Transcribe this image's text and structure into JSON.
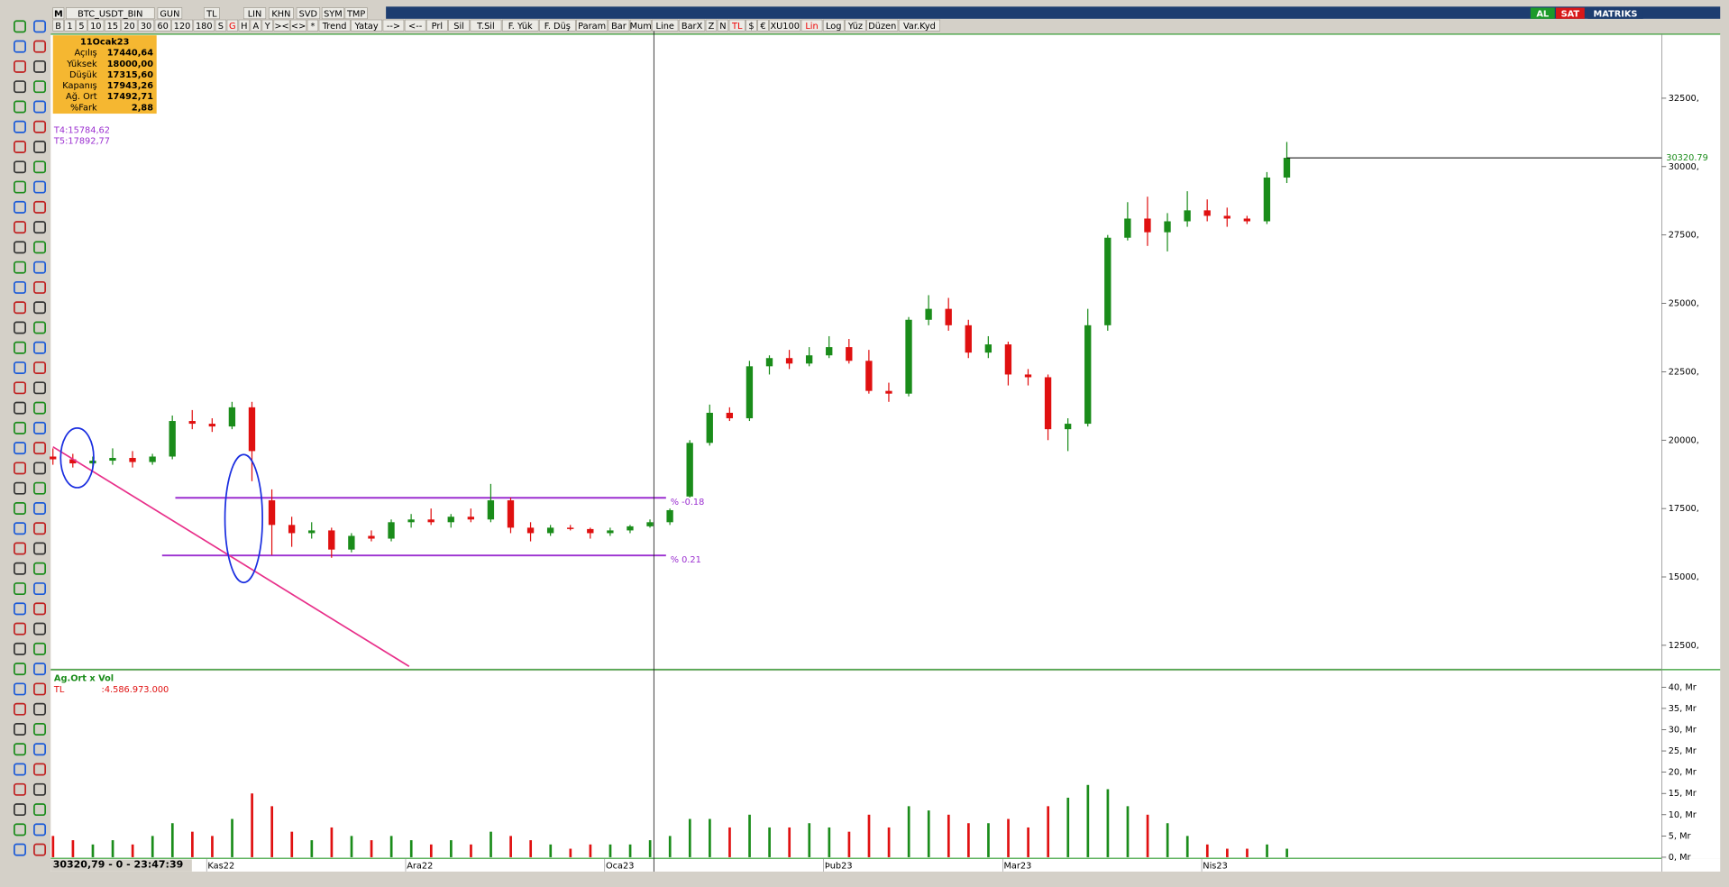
{
  "toolbar": {
    "row1": [
      "M",
      "BTC_USDT_BIN",
      "GUN",
      "TL",
      "LIN",
      "KHN",
      "SVD",
      "SYM",
      "TMP"
    ],
    "row2": [
      "B",
      "1",
      "5",
      "10",
      "15",
      "20",
      "30",
      "60",
      "120",
      "180",
      "S",
      "G",
      "H",
      "A",
      "Y",
      "><",
      "<>",
      "*",
      "Trend",
      "Yatay",
      "-->",
      "<--",
      "Prl",
      "Sil",
      "T.Sil",
      "F. Yük",
      "F. Düş",
      "Param",
      "Bar",
      "Mum",
      "Line",
      "BarX",
      "Z",
      "N",
      "TL",
      "$",
      "€",
      "XU100",
      "Lin",
      "Log",
      "Yüz",
      "Düzen",
      "Var.Kyd"
    ],
    "right": [
      "AL",
      "SAT",
      "MATRIKS"
    ]
  },
  "info": {
    "date": "11Ocak23",
    "rows": [
      [
        "Açılış",
        "17440,64"
      ],
      [
        "Yüksek",
        "18000,00"
      ],
      [
        "Düşük",
        "17315,60"
      ],
      [
        "Kapanış",
        "17943,26"
      ],
      [
        "Ağ. Ort",
        "17492,71"
      ],
      [
        "%Fark",
        "2,88"
      ]
    ]
  },
  "status": "30320,79 - 0 - 23:47:39",
  "chart_data": [
    {
      "type": "candlestick",
      "categories": [
        null,
        null,
        null,
        null,
        null,
        null,
        null,
        null,
        "Kas22",
        null,
        null,
        null,
        null,
        null,
        null,
        null,
        null,
        null,
        "Ara22",
        null,
        null,
        null,
        null,
        null,
        null,
        null,
        null,
        null,
        "Oca23",
        null,
        null,
        null,
        null,
        null,
        null,
        null,
        null,
        null,
        null,
        "Þub23",
        null,
        null,
        null,
        null,
        null,
        null,
        null,
        null,
        "Mar23",
        null,
        null,
        null,
        null,
        null,
        null,
        null,
        null,
        null,
        "Nis23",
        null,
        null,
        null,
        null
      ],
      "open": [
        19400,
        19300,
        19150,
        19250,
        19350,
        19200,
        19400,
        20700,
        20600,
        20500,
        21200,
        17800,
        16900,
        16600,
        16700,
        16000,
        16500,
        16400,
        17000,
        17100,
        17000,
        17200,
        17100,
        17800,
        16800,
        16600,
        16800,
        16750,
        16600,
        16700,
        16850,
        17000,
        17940,
        19900,
        21000,
        20800,
        22700,
        23000,
        22800,
        23100,
        23400,
        22900,
        21800,
        21700,
        24400,
        24800,
        24200,
        23200,
        23500,
        22400,
        22300,
        20400,
        20600,
        24200,
        27400,
        28100,
        27600,
        28000,
        28400,
        28200,
        28100,
        28000,
        29600
      ],
      "high": [
        19700,
        19500,
        19400,
        19700,
        19600,
        19500,
        20900,
        21100,
        20800,
        21400,
        21400,
        18200,
        17200,
        17000,
        16800,
        16600,
        16700,
        17100,
        17300,
        17500,
        17300,
        17500,
        18400,
        17900,
        17000,
        16900,
        16900,
        16800,
        16800,
        16900,
        17100,
        17500,
        20000,
        21300,
        21200,
        22900,
        23100,
        23300,
        23400,
        23800,
        23700,
        23300,
        22100,
        24500,
        25300,
        25200,
        24400,
        23800,
        23600,
        22600,
        22400,
        20800,
        24800,
        27500,
        28700,
        28900,
        28300,
        29100,
        28800,
        28500,
        28200,
        29800,
        30900
      ],
      "low": [
        19100,
        19000,
        19000,
        19100,
        19000,
        19100,
        19300,
        20400,
        20300,
        20400,
        18500,
        15800,
        16100,
        16400,
        15700,
        15900,
        16300,
        16300,
        16800,
        16900,
        16800,
        17000,
        17000,
        16600,
        16300,
        16500,
        16700,
        16400,
        16500,
        16600,
        16800,
        16900,
        17900,
        19800,
        20700,
        20700,
        22400,
        22600,
        22700,
        23000,
        22800,
        21700,
        21400,
        21600,
        24200,
        24000,
        23000,
        23000,
        22000,
        22000,
        20000,
        19600,
        20500,
        24000,
        27300,
        27100,
        26900,
        27800,
        28000,
        27800,
        27900,
        27900,
        29400
      ],
      "close": [
        19300,
        19150,
        19250,
        19350,
        19200,
        19400,
        20700,
        20600,
        20500,
        21200,
        19600,
        16900,
        16600,
        16700,
        16000,
        16500,
        16400,
        17000,
        17100,
        17000,
        17200,
        17100,
        17800,
        16800,
        16600,
        16800,
        16750,
        16600,
        16700,
        16850,
        17000,
        17440,
        19900,
        21000,
        20800,
        22700,
        23000,
        22800,
        23100,
        23400,
        22900,
        21800,
        21700,
        24400,
        24800,
        24200,
        23200,
        23500,
        22400,
        22300,
        20400,
        20600,
        24200,
        27400,
        28100,
        27600,
        28000,
        28400,
        28200,
        28100,
        28000,
        29600,
        30320.79
      ],
      "up_color": "#1a8c1a",
      "down_color": "#e01010",
      "ylim": [
        11650,
        34840
      ],
      "yticks": [
        {
          "value": 12500,
          "label": "12500,"
        },
        {
          "value": 15000,
          "label": "15000,"
        },
        {
          "value": 17500,
          "label": "17500,"
        },
        {
          "value": 20000,
          "label": "20000,"
        },
        {
          "value": 22500,
          "label": "22500,"
        },
        {
          "value": 25000,
          "label": "25000,"
        },
        {
          "value": 27500,
          "label": "27500,"
        },
        {
          "value": 30000,
          "label": "30000,"
        },
        {
          "value": 32500,
          "label": "32500,"
        }
      ],
      "last_price": 30320.79,
      "levels": [
        {
          "value": 15784.62,
          "label": "T4:15784,62",
          "pct": "% 0.21",
          "color": "#9b2fd0"
        },
        {
          "value": 17892.77,
          "label": "T5:17892,77",
          "pct": "% -0.18",
          "color": "#9b2fd0"
        }
      ]
    },
    {
      "type": "bar",
      "title": "Ag.Ort x Vol",
      "currency": "TL",
      "amount": ":4.586.973.000",
      "values": [
        5,
        4,
        3,
        4,
        3,
        5,
        8,
        6,
        5,
        9,
        15,
        12,
        6,
        4,
        7,
        5,
        4,
        5,
        4,
        3,
        4,
        3,
        6,
        5,
        4,
        3,
        2,
        3,
        3,
        3,
        4,
        5,
        9,
        9,
        7,
        10,
        7,
        7,
        8,
        7,
        6,
        10,
        7,
        12,
        11,
        10,
        8,
        8,
        9,
        7,
        12,
        14,
        17,
        16,
        12,
        10,
        8,
        5,
        3,
        2,
        2,
        3,
        2
      ],
      "ylim": [
        0,
        43.6
      ],
      "yticks": [
        {
          "value": 0,
          "label": "0, Mr"
        },
        {
          "value": 5,
          "label": "5, Mr"
        },
        {
          "value": 10,
          "label": "10, Mr"
        },
        {
          "value": 15,
          "label": "15, Mr"
        },
        {
          "value": 20,
          "label": "20, Mr"
        },
        {
          "value": 25,
          "label": "25, Mr"
        },
        {
          "value": 30,
          "label": "30, Mr"
        },
        {
          "value": 35,
          "label": "35, Mr"
        },
        {
          "value": 40,
          "label": "40, Mr"
        }
      ]
    }
  ]
}
